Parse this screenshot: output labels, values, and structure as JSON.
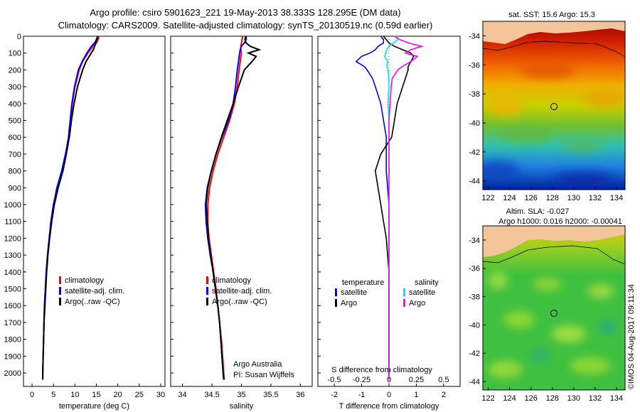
{
  "header": {
    "line1": "Argo profile: csiro 5901623_221 19-May-2013 38.333S 128.295E (DM data)",
    "line2": "Climatology: CARS2009. Satellite-adjusted climatology: synTS_20130519.nc (0.59d earlier)"
  },
  "credits": {
    "program": "Argo Australia",
    "pi": "PI: Susan Wijffels",
    "stamp": "©IMOS 04-Aug-2017 09:11:34"
  },
  "colors": {
    "climatology": "#ff0000",
    "satellite": "#0000ff",
    "argo": "#000000",
    "sal_satellite": "#00e5ee",
    "sal_argo": "#ff00ff"
  },
  "chart_data": [
    {
      "type": "line",
      "id": "temperature",
      "xlabel": "temperature (deg C)",
      "ylabel": "",
      "xlim": [
        -2,
        31
      ],
      "ylim": [
        0,
        2080
      ],
      "y_reversed": true,
      "xticks": [
        0,
        5,
        10,
        15,
        20,
        25,
        30
      ],
      "yticks": [
        0,
        100,
        200,
        300,
        400,
        500,
        600,
        700,
        800,
        900,
        1000,
        1100,
        1200,
        1300,
        1400,
        1500,
        1600,
        1700,
        1800,
        1900,
        2000
      ],
      "legend": [
        "climatology",
        "satellite-adj. clim.",
        "Argo(..raw -QC)"
      ],
      "legend_position": "lower-right",
      "depth": [
        0,
        20,
        40,
        60,
        80,
        100,
        150,
        200,
        300,
        400,
        500,
        600,
        700,
        800,
        900,
        1000,
        1100,
        1200,
        1300,
        1400,
        1500,
        1600,
        1700,
        1800,
        1900,
        2000,
        2040
      ],
      "series": [
        {
          "name": "climatology",
          "color": "#ff0000",
          "values": [
            15.6,
            15.4,
            15.0,
            14.2,
            13.6,
            13.0,
            11.8,
            11.0,
            10.0,
            9.4,
            9.0,
            8.6,
            7.9,
            7.0,
            5.9,
            5.0,
            4.4,
            4.0,
            3.6,
            3.3,
            3.1,
            2.9,
            2.8,
            2.7,
            2.6,
            2.5,
            2.5
          ]
        },
        {
          "name": "satellite-adj. clim.",
          "color": "#0000ff",
          "values": [
            15.3,
            15.0,
            14.6,
            13.8,
            13.3,
            12.8,
            11.7,
            10.8,
            9.9,
            9.3,
            8.9,
            8.5,
            7.8,
            6.9,
            5.8,
            5.0,
            4.4,
            4.0,
            3.6,
            3.3,
            3.1,
            2.9,
            2.8,
            2.7,
            2.6,
            2.5,
            2.5
          ]
        },
        {
          "name": "Argo(..raw -QC)",
          "color": "#000000",
          "values": [
            15.3,
            15.1,
            14.9,
            14.6,
            14.3,
            13.8,
            12.6,
            11.8,
            10.6,
            9.8,
            9.2,
            8.7,
            8.0,
            7.2,
            6.1,
            5.2,
            4.6,
            4.1,
            3.7,
            3.4,
            3.2,
            3.0,
            2.8,
            2.7,
            2.6,
            2.5,
            2.5
          ]
        }
      ]
    },
    {
      "type": "line",
      "id": "salinity",
      "xlabel": "salinity",
      "xlim": [
        33.8,
        36.2
      ],
      "ylim": [
        0,
        2080
      ],
      "y_reversed": true,
      "xticks": [
        34,
        34.5,
        35,
        35.5,
        36
      ],
      "legend": [
        "climatology",
        "satellite-adj. clim.",
        "Argo(..raw -QC)"
      ],
      "legend_position": "lower-right",
      "depth": [
        0,
        20,
        40,
        60,
        80,
        100,
        120,
        150,
        200,
        300,
        400,
        500,
        600,
        700,
        800,
        900,
        1000,
        1100,
        1200,
        1300,
        1400,
        1500,
        1600,
        1700,
        1800,
        1900,
        2000,
        2040
      ],
      "series": [
        {
          "name": "climatology",
          "color": "#ff0000",
          "values": [
            35.02,
            35.01,
            35.0,
            34.99,
            34.99,
            35.0,
            34.99,
            34.98,
            34.96,
            34.93,
            34.88,
            34.8,
            34.7,
            34.6,
            34.52,
            34.46,
            34.43,
            34.43,
            34.45,
            34.49,
            34.53,
            34.57,
            34.6,
            34.63,
            34.66,
            34.68,
            34.7,
            34.71
          ]
        },
        {
          "name": "satellite-adj. clim.",
          "color": "#0000ff",
          "values": [
            35.08,
            35.08,
            35.05,
            35.0,
            34.98,
            34.97,
            34.96,
            34.95,
            34.93,
            34.9,
            34.86,
            34.78,
            34.67,
            34.57,
            34.49,
            34.42,
            34.39,
            34.4,
            34.43,
            34.47,
            34.52,
            34.56,
            34.6,
            34.63,
            34.65,
            34.67,
            34.69,
            34.7
          ]
        },
        {
          "name": "Argo(..raw -QC)",
          "color": "#000000",
          "values": [
            35.07,
            35.06,
            35.08,
            35.15,
            35.3,
            35.12,
            35.25,
            35.18,
            35.05,
            34.95,
            34.86,
            34.76,
            34.66,
            34.57,
            34.49,
            34.43,
            34.4,
            34.42,
            34.44,
            34.48,
            34.52,
            34.56,
            34.6,
            34.63,
            34.65,
            34.67,
            34.69,
            34.7
          ]
        }
      ]
    },
    {
      "type": "line",
      "id": "difference",
      "xlabel": "T difference from climatology",
      "x2label": "S difference from climatology",
      "xlim": [
        -2.6,
        2.6
      ],
      "ylim": [
        0,
        2080
      ],
      "y_reversed": true,
      "xticks": [
        -2,
        -1,
        0,
        1,
        2
      ],
      "x2ticks": [
        "-0.5",
        "-0.25",
        "0",
        "0.25",
        "0.5"
      ],
      "legend_groups": [
        "temperature",
        "salinity"
      ],
      "legend": [
        "satellite",
        "Argo",
        "satellite",
        "Argo"
      ],
      "depth": [
        0,
        20,
        40,
        60,
        80,
        100,
        120,
        150,
        180,
        200,
        250,
        300,
        400,
        500,
        600,
        700,
        800,
        900,
        1000,
        1100,
        1200,
        1300,
        1400,
        1500,
        1600,
        1700,
        1800,
        1900,
        2000,
        2040
      ],
      "series": [
        {
          "name": "satellite",
          "group": "temperature",
          "color": "#0000ff",
          "values": [
            -0.3,
            -0.2,
            -0.2,
            -0.4,
            -0.5,
            -0.7,
            -1.0,
            -1.2,
            -0.9,
            -0.8,
            -0.6,
            -0.5,
            -0.3,
            -0.2,
            -0.1,
            -0.1,
            -0.1,
            -0.05,
            0,
            0,
            0,
            0,
            0,
            0,
            0,
            0,
            0,
            0,
            0,
            0
          ]
        },
        {
          "name": "Argo",
          "group": "temperature",
          "color": "#000000",
          "values": [
            -0.2,
            -0.1,
            0,
            0.2,
            0.5,
            0.8,
            0.9,
            0.8,
            0.7,
            0.7,
            0.6,
            0.5,
            0.3,
            0.2,
            0.1,
            -0.3,
            -0.5,
            -0.4,
            -0.3,
            -0.2,
            -0.1,
            -0.05,
            0,
            0,
            0,
            0,
            0,
            0,
            0,
            0
          ]
        },
        {
          "name": "satellite",
          "group": "salinity",
          "color": "#00e5ee",
          "values": [
            0.06,
            0.08,
            0.04,
            0.0,
            -0.02,
            -0.03,
            -0.04,
            -0.01,
            -0.02,
            -0.01,
            0.0,
            0.0,
            -0.01,
            0.0,
            0.0,
            0.0,
            0.0,
            0.0,
            0.0,
            0.0,
            0.0,
            0.0,
            0.0,
            0.0,
            0.0,
            0.0,
            0.0,
            0.0,
            0.0,
            0.0
          ]
        },
        {
          "name": "Argo",
          "group": "salinity",
          "color": "#ff00ff",
          "values": [
            0.05,
            0.1,
            0.18,
            0.3,
            0.2,
            0.15,
            0.26,
            0.2,
            0.12,
            0.08,
            0.03,
            0.02,
            0.01,
            0.0,
            0.0,
            0.0,
            0.0,
            0.0,
            0.0,
            0.0,
            0.0,
            0.0,
            0.0,
            0.0,
            0.0,
            0.0,
            0.0,
            0.0,
            0.0,
            0.0
          ]
        }
      ]
    },
    {
      "type": "heatmap",
      "id": "sst-map",
      "title": "sat. SST: 15.6 Argo: 15.3",
      "xlim": [
        121.5,
        134.8
      ],
      "ylim": [
        -44.6,
        -33.0
      ],
      "xticks": [
        122,
        124,
        126,
        128,
        130,
        132,
        134
      ],
      "yticks": [
        -34,
        -36,
        -38,
        -40,
        -42,
        -44
      ],
      "marker": {
        "lon": 128.295,
        "lat": -38.333
      }
    },
    {
      "type": "heatmap",
      "id": "sla-map",
      "title": "Altim. SLA: -0.027",
      "subtitle": "Argo h1000: 0.016 h2000: -0.00041",
      "xlim": [
        121.5,
        134.8
      ],
      "ylim": [
        -44.6,
        -33.0
      ],
      "xticks": [
        122,
        124,
        126,
        128,
        130,
        132,
        134
      ],
      "yticks": [
        -34,
        -36,
        -38,
        -40,
        -42,
        -44
      ],
      "marker": {
        "lon": 128.295,
        "lat": -38.333
      }
    }
  ]
}
